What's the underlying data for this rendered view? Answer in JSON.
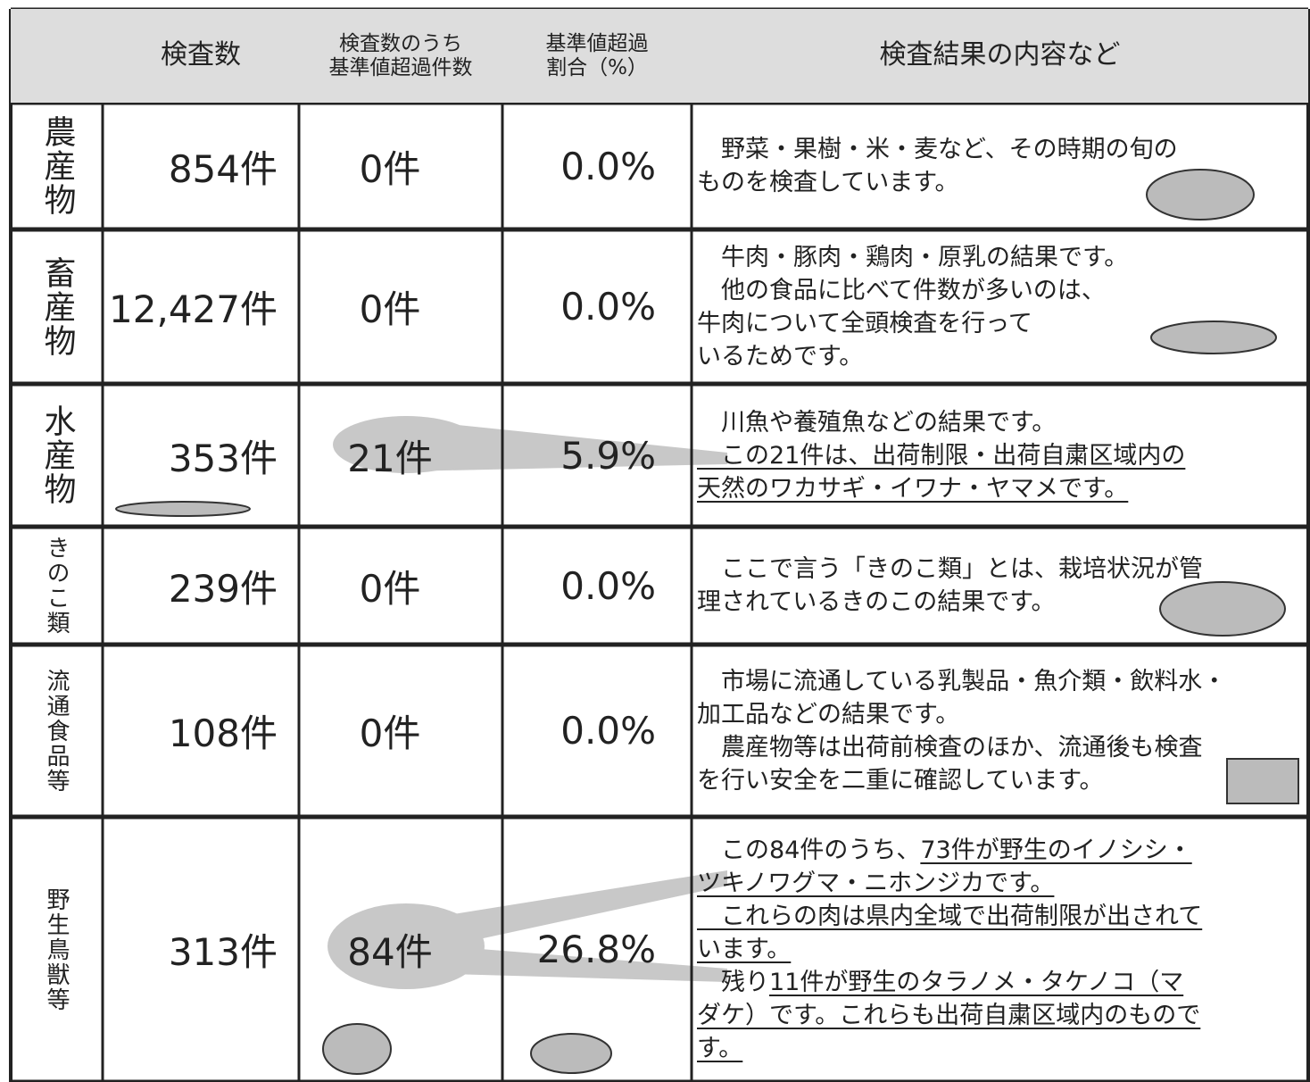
{
  "table": {
    "header": [
      "",
      "検査数",
      "検査数のうち\n基準値超過件数",
      "基準値超過\n割合（%）",
      "検査結果の内容など"
    ],
    "rows": [
      {
        "label": "農産物",
        "count": "854件",
        "exceeded": "0件",
        "ratio": "0.0%",
        "description": [
          [
            {
              "text": "　野菜・果樹・米・麦など、その時期の旬の",
              "underline": false
            }
          ],
          [
            {
              "text": "ものを検査しています。",
              "underline": false
            }
          ]
        ]
      },
      {
        "label": "畜産物",
        "count": "12,427件",
        "exceeded": "0件",
        "ratio": "0.0%",
        "description": [
          [
            {
              "text": "　牛肉・豚肉・鶏肉・原乳の結果です。",
              "underline": false
            }
          ],
          [
            {
              "text": "　他の食品に比べて件数が多いのは、",
              "underline": false
            }
          ],
          [
            {
              "text": "牛肉について全頭検査を行って",
              "underline": false
            }
          ],
          [
            {
              "text": "いるためです。",
              "underline": false
            }
          ]
        ]
      },
      {
        "label": "水産物",
        "count": "353件",
        "exceeded": "21件",
        "ratio": "5.9%",
        "description": [
          [
            {
              "text": "　川魚や養殖魚などの結果です。",
              "underline": false
            }
          ],
          [
            {
              "text": "　この21件は、出荷制限・出荷自粛区域内の",
              "underline": true
            }
          ],
          [
            {
              "text": "天然のワカサギ・イワナ・ヤマメです。",
              "underline": true
            }
          ]
        ]
      },
      {
        "label": "きのこ類",
        "count": "239件",
        "exceeded": "0件",
        "ratio": "0.0%",
        "description": [
          [
            {
              "text": "　ここで言う「きのこ類」とは、栽培状況が管",
              "underline": false
            }
          ],
          [
            {
              "text": "理されているきのこの結果です。",
              "underline": false
            }
          ]
        ]
      },
      {
        "label": "流通食品等",
        "count": "108件",
        "exceeded": "0件",
        "ratio": "0.0%",
        "description": [
          [
            {
              "text": "　市場に流通している乳製品・魚介類・飲料水・",
              "underline": false
            }
          ],
          [
            {
              "text": "加工品などの結果です。",
              "underline": false
            }
          ],
          [
            {
              "text": "　農産物等は出荷前検査のほか、流通後も検査",
              "underline": false
            }
          ],
          [
            {
              "text": "を行い安全を二重に確認しています。",
              "underline": false
            }
          ]
        ]
      },
      {
        "label": "野生鳥獣等",
        "count": "313件",
        "exceeded": "84件",
        "ratio": "26.8%",
        "description": [
          [
            {
              "text": "　この84件のうち、",
              "underline": false
            },
            {
              "text": "73件が野生のイノシシ・",
              "underline": true
            }
          ],
          [
            {
              "text": "ツキノワグマ・ニホンジカです。",
              "underline": true
            }
          ],
          [
            {
              "text": "　これらの肉は県内全域で出荷制限が出されて",
              "underline": true
            }
          ],
          [
            {
              "text": "います。",
              "underline": true
            }
          ],
          [
            {
              "text": "　残り",
              "underline": false
            },
            {
              "text": "11件が野生のタラノメ・タケノコ（マ",
              "underline": true
            }
          ],
          [
            {
              "text": "ダケ）です。これらも出荷自粛区域内のもので",
              "underline": true
            }
          ],
          [
            {
              "text": "す。",
              "underline": true
            }
          ]
        ]
      }
    ]
  }
}
